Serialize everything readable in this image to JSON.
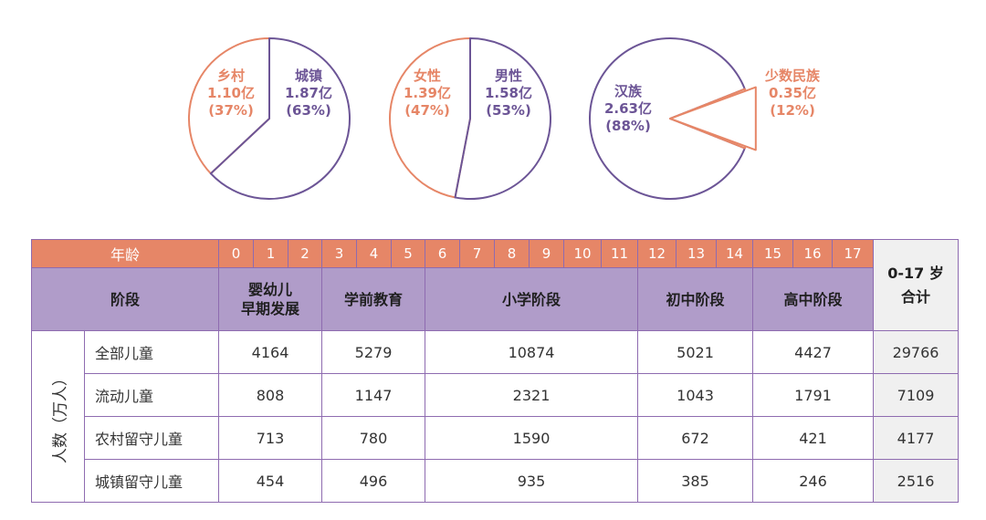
{
  "pies": [
    {
      "slices": [
        {
          "name": "乡村",
          "value_label": "1.10亿",
          "pct_label": "(37%)",
          "value": 1.1,
          "pct": 37,
          "color": "#e68667"
        },
        {
          "name": "城镇",
          "value_label": "1.87亿",
          "pct_label": "(63%)",
          "value": 1.87,
          "pct": 63,
          "color": "#6c5596"
        }
      ]
    },
    {
      "slices": [
        {
          "name": "女性",
          "value_label": "1.39亿",
          "pct_label": "(47%)",
          "value": 1.39,
          "pct": 47,
          "color": "#e68667"
        },
        {
          "name": "男性",
          "value_label": "1.58亿",
          "pct_label": "(53%)",
          "value": 1.58,
          "pct": 53,
          "color": "#6c5596"
        }
      ]
    },
    {
      "slices": [
        {
          "name": "汉族",
          "value_label": "2.63亿",
          "pct_label": "(88%)",
          "value": 2.63,
          "pct": 88,
          "color": "#6c5596"
        },
        {
          "name": "少数民族",
          "value_label": "0.35亿",
          "pct_label": "(12%)",
          "value": 0.35,
          "pct": 12,
          "color": "#e68667"
        }
      ]
    }
  ],
  "table": {
    "age_label": "年龄",
    "ages": [
      "0",
      "1",
      "2",
      "3",
      "4",
      "5",
      "6",
      "7",
      "8",
      "9",
      "10",
      "11",
      "12",
      "13",
      "14",
      "15",
      "16",
      "17"
    ],
    "stage_label": "阶段",
    "stages": [
      "婴幼儿\n早期发展",
      "学前教育",
      "小学阶段",
      "初中阶段",
      "高中阶段"
    ],
    "total_header": "0-17 岁\n合计",
    "vertical_label": "人数（万人）",
    "rows": [
      {
        "label": "全部儿童",
        "values": [
          "4164",
          "5279",
          "10874",
          "5021",
          "4427"
        ],
        "total": "29766"
      },
      {
        "label": "流动儿童",
        "values": [
          "808",
          "1147",
          "2321",
          "1043",
          "1791"
        ],
        "total": "7109"
      },
      {
        "label": "农村留守儿童",
        "values": [
          "713",
          "780",
          "1590",
          "672",
          "421"
        ],
        "total": "4177"
      },
      {
        "label": "城镇留守儿童",
        "values": [
          "454",
          "496",
          "935",
          "385",
          "246"
        ],
        "total": "2516"
      }
    ]
  },
  "chart_data": [
    {
      "type": "pie",
      "labels": [
        "乡村",
        "城镇"
      ],
      "values": [
        1.1,
        1.87
      ],
      "percent": [
        37,
        63
      ]
    },
    {
      "type": "pie",
      "labels": [
        "女性",
        "男性"
      ],
      "values": [
        1.39,
        1.58
      ],
      "percent": [
        47,
        53
      ]
    },
    {
      "type": "pie",
      "labels": [
        "汉族",
        "少数民族"
      ],
      "values": [
        2.63,
        0.35
      ],
      "percent": [
        88,
        12
      ]
    },
    {
      "type": "table",
      "columns": [
        "阶段",
        "婴幼儿早期发展",
        "学前教育",
        "小学阶段",
        "初中阶段",
        "高中阶段",
        "0-17 岁合计"
      ],
      "age_groups": [
        "0-2",
        "3-5",
        "6-11",
        "12-14",
        "15-17"
      ],
      "rows": [
        [
          "全部儿童",
          4164,
          5279,
          10874,
          5021,
          4427,
          29766
        ],
        [
          "流动儿童",
          808,
          1147,
          2321,
          1043,
          1791,
          7109
        ],
        [
          "农村留守儿童",
          713,
          780,
          1590,
          672,
          421,
          4177
        ],
        [
          "城镇留守儿童",
          454,
          496,
          935,
          385,
          246,
          2516
        ]
      ],
      "unit": "人数（万人）"
    }
  ]
}
